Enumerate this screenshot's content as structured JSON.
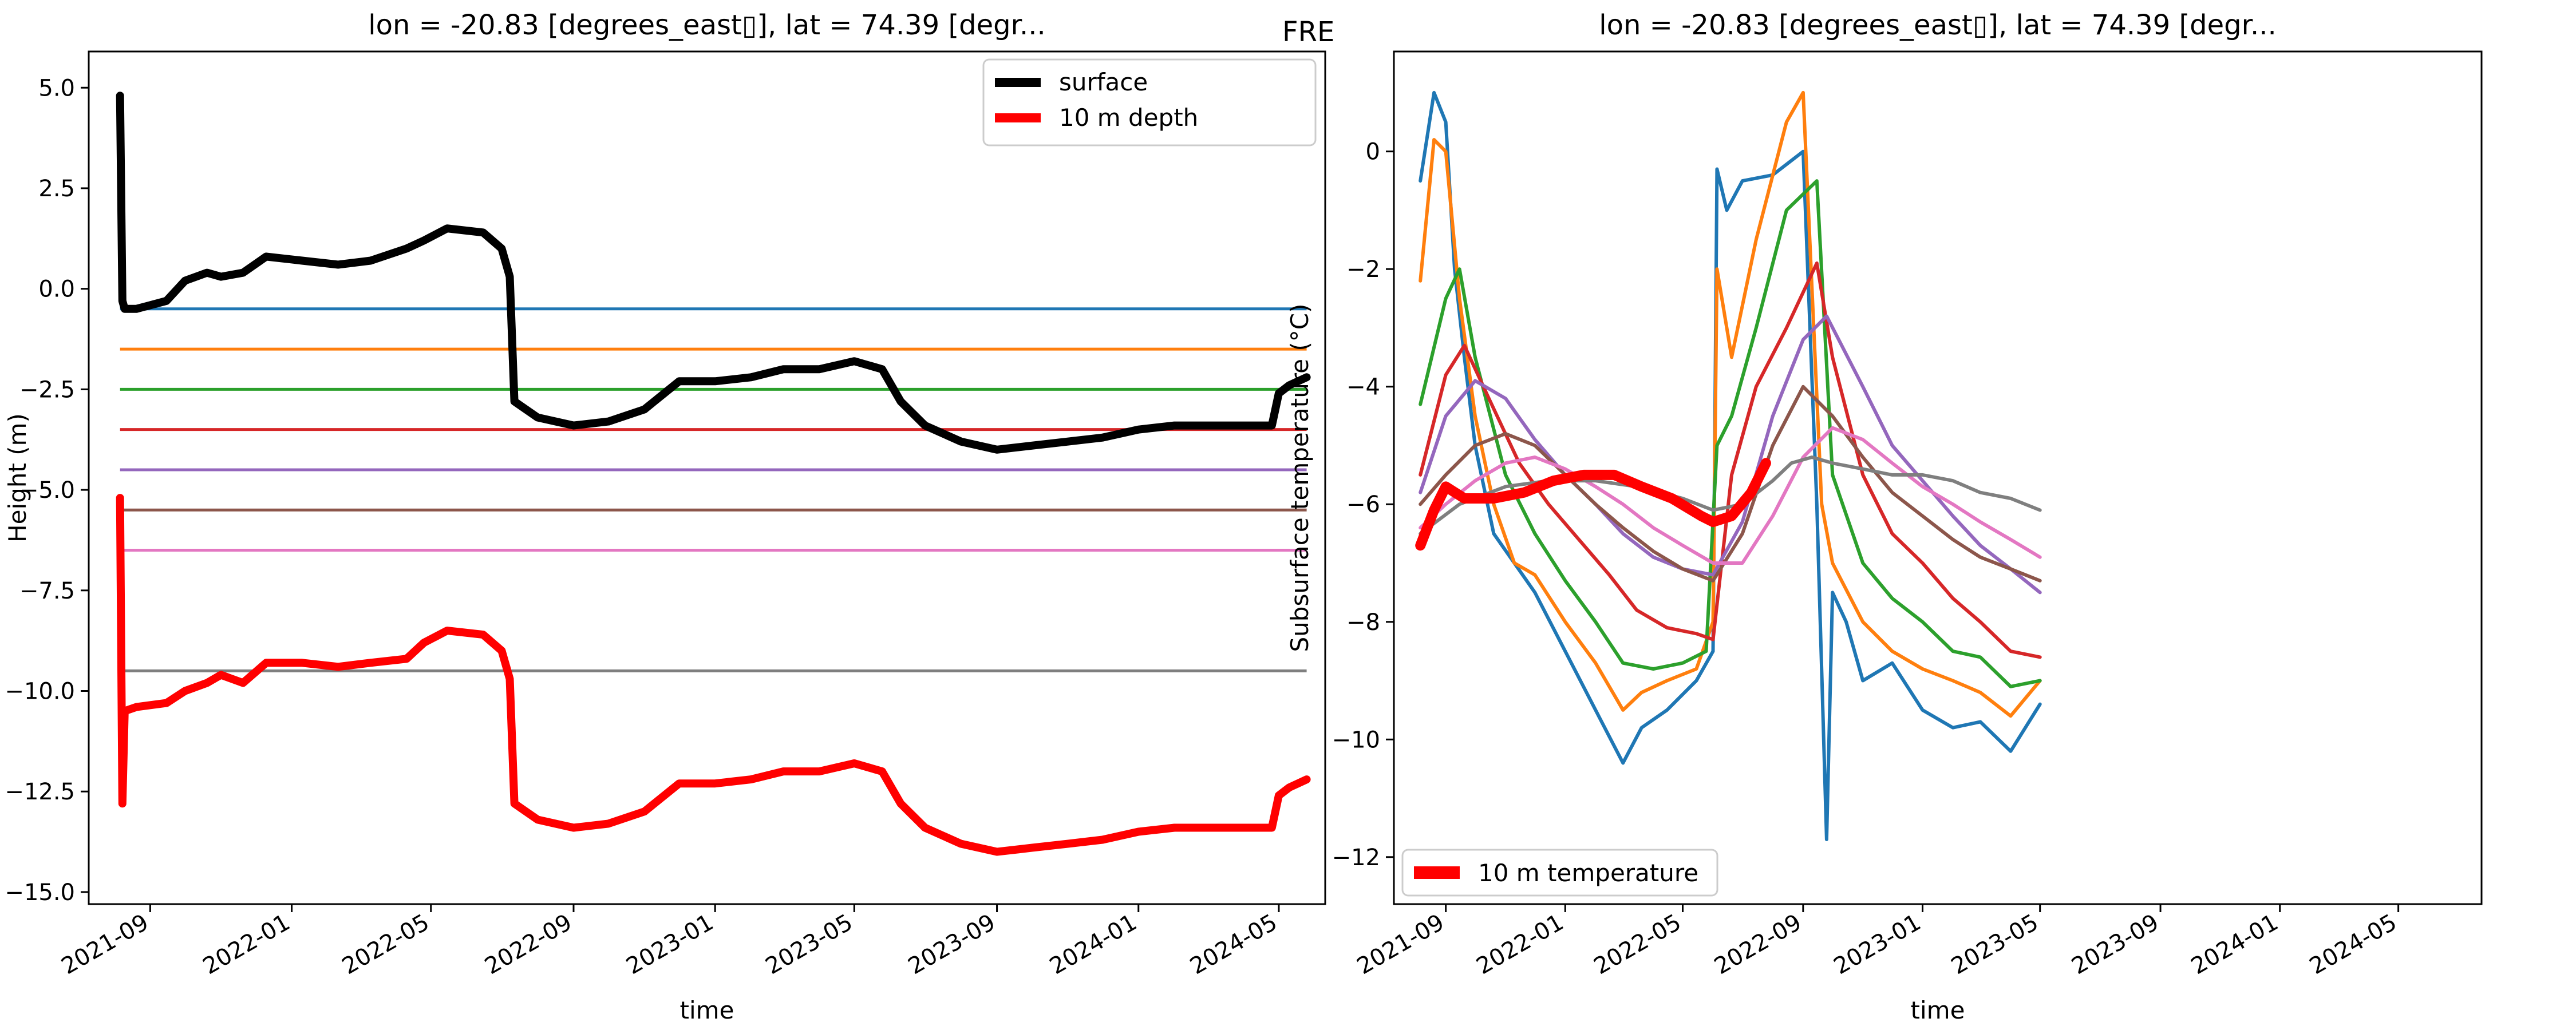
{
  "figure_label": "FRE",
  "colors": {
    "C0": "#1f77b4",
    "C1": "#ff7f0e",
    "C2": "#2ca02c",
    "C3": "#d62728",
    "C4": "#9467bd",
    "C5": "#8c564b",
    "C6": "#e377c2",
    "C7": "#7f7f7f",
    "surface": "#000000",
    "depth10": "#ff0000"
  },
  "chart_data": [
    {
      "type": "line",
      "title": "lon = -20.83 [degrees_east▯], lat = 74.39 [degr...",
      "xlabel": "time",
      "ylabel": "Height (m)",
      "xlim": [
        "2021-07-10",
        "2024-06-10"
      ],
      "ylim": [
        -15.3,
        5.9
      ],
      "xticks": [
        "2021-09",
        "2022-01",
        "2022-05",
        "2022-09",
        "2023-01",
        "2023-05",
        "2023-09",
        "2024-01",
        "2024-05"
      ],
      "yticks": [
        5.0,
        2.5,
        0.0,
        -2.5,
        -5.0,
        -7.5,
        -10.0,
        -12.5,
        -15.0
      ],
      "ytick_labels": [
        "5.0",
        "2.5",
        "0.0",
        "−2.5",
        "−5.0",
        "−7.5",
        "−10.0",
        "−12.5",
        "−15.0"
      ],
      "legend": {
        "position": "upper-right",
        "entries": [
          "surface",
          "10 m depth"
        ]
      },
      "series": [
        {
          "name": "surface",
          "color": "surface",
          "x": [
            "2021-08-06",
            "2021-08-08",
            "2021-08-10",
            "2021-08-20",
            "2021-09-15",
            "2021-10-01",
            "2021-10-20",
            "2021-11-01",
            "2021-11-20",
            "2021-12-10",
            "2022-01-10",
            "2022-02-10",
            "2022-03-10",
            "2022-04-10",
            "2022-04-25",
            "2022-05-15",
            "2022-06-15",
            "2022-07-01",
            "2022-07-08",
            "2022-07-12",
            "2022-08-01",
            "2022-09-01",
            "2022-10-01",
            "2022-11-01",
            "2022-12-01",
            "2023-01-01",
            "2023-02-01",
            "2023-03-01",
            "2023-04-01",
            "2023-05-01",
            "2023-05-25",
            "2023-06-10",
            "2023-07-01",
            "2023-08-01",
            "2023-09-01",
            "2023-10-01",
            "2023-11-01",
            "2023-12-01",
            "2024-01-01",
            "2024-02-01",
            "2024-03-01",
            "2024-04-01",
            "2024-04-25",
            "2024-05-01",
            "2024-05-10",
            "2024-05-25"
          ],
          "y": [
            4.8,
            -0.3,
            -0.5,
            -0.5,
            -0.3,
            0.2,
            0.4,
            0.3,
            0.4,
            0.8,
            0.7,
            0.6,
            0.7,
            1.0,
            1.2,
            1.5,
            1.4,
            1.0,
            0.3,
            -2.8,
            -3.2,
            -3.4,
            -3.3,
            -3.0,
            -2.3,
            -2.3,
            -2.2,
            -2.0,
            -2.0,
            -1.8,
            -2.0,
            -2.8,
            -3.4,
            -3.8,
            -4.0,
            -3.9,
            -3.8,
            -3.7,
            -3.5,
            -3.4,
            -3.4,
            -3.4,
            -3.4,
            -2.6,
            -2.4,
            -2.2
          ]
        },
        {
          "name": "10 m depth",
          "color": "depth10",
          "x": [
            "2021-08-06",
            "2021-08-08",
            "2021-08-10",
            "2021-08-20",
            "2021-09-15",
            "2021-10-01",
            "2021-10-20",
            "2021-11-01",
            "2021-11-20",
            "2021-12-10",
            "2022-01-10",
            "2022-02-10",
            "2022-03-10",
            "2022-04-10",
            "2022-04-25",
            "2022-05-15",
            "2022-06-15",
            "2022-07-01",
            "2022-07-08",
            "2022-07-12",
            "2022-08-01",
            "2022-09-01",
            "2022-10-01",
            "2022-11-01",
            "2022-12-01",
            "2023-01-01",
            "2023-02-01",
            "2023-03-01",
            "2023-04-01",
            "2023-05-01",
            "2023-05-25",
            "2023-06-10",
            "2023-07-01",
            "2023-08-01",
            "2023-09-01",
            "2023-10-01",
            "2023-11-01",
            "2023-12-01",
            "2024-01-01",
            "2024-02-01",
            "2024-03-01",
            "2024-04-01",
            "2024-04-25",
            "2024-05-01",
            "2024-05-10",
            "2024-05-25"
          ],
          "y": [
            -5.2,
            -12.8,
            -10.5,
            -10.4,
            -10.3,
            -10.0,
            -9.8,
            -9.6,
            -9.8,
            -9.3,
            -9.3,
            -9.4,
            -9.3,
            -9.2,
            -8.8,
            -8.5,
            -8.6,
            -9.0,
            -9.7,
            -12.8,
            -13.2,
            -13.4,
            -13.3,
            -13.0,
            -12.3,
            -12.3,
            -12.2,
            -12.0,
            -12.0,
            -11.8,
            -12.0,
            -12.8,
            -13.4,
            -13.8,
            -14.0,
            -13.9,
            -13.8,
            -13.7,
            -13.5,
            -13.4,
            -13.4,
            -13.4,
            -13.4,
            -12.6,
            -12.4,
            -12.2
          ]
        }
      ],
      "horizontal_lines": [
        {
          "y": -0.5,
          "color": "C0"
        },
        {
          "y": -1.5,
          "color": "C1"
        },
        {
          "y": -2.5,
          "color": "C2"
        },
        {
          "y": -3.5,
          "color": "C3"
        },
        {
          "y": -4.5,
          "color": "C4"
        },
        {
          "y": -5.5,
          "color": "C5"
        },
        {
          "y": -6.5,
          "color": "C6"
        },
        {
          "y": -9.5,
          "color": "C7"
        }
      ],
      "x_range": [
        "2021-08-06",
        "2024-05-25"
      ]
    },
    {
      "type": "line",
      "title": "lon = -20.83 [degrees_east▯], lat = 74.39 [degr...",
      "xlabel": "time",
      "ylabel": "Subsurface temperature (°C)",
      "xlim": [
        "2021-07-10",
        "2024-07-25"
      ],
      "ylim": [
        -12.8,
        1.7
      ],
      "xticks": [
        "2021-09",
        "2022-01",
        "2022-05",
        "2022-09",
        "2023-01",
        "2023-05",
        "2023-09",
        "2024-01",
        "2024-05"
      ],
      "yticks": [
        0,
        -2,
        -4,
        -6,
        -8,
        -10,
        -12
      ],
      "ytick_labels": [
        "0",
        "−2",
        "−4",
        "−6",
        "−8",
        "−10",
        "−12"
      ],
      "legend": {
        "position": "lower-left",
        "entries": [
          "10 m temperature"
        ]
      },
      "series": [
        {
          "color": "C0",
          "x": [
            "2021-08-06",
            "2021-08-20",
            "2021-09-01",
            "2021-09-10",
            "2021-09-20",
            "2021-10-01",
            "2021-10-20",
            "2021-11-10",
            "2021-12-01",
            "2022-01-01",
            "2022-02-01",
            "2022-03-01",
            "2022-03-20",
            "2022-04-15",
            "2022-05-15",
            "2022-06-01",
            "2022-06-05",
            "2022-06-15",
            "2022-07-01",
            "2022-08-01",
            "2022-09-01",
            "2022-09-15",
            "2022-09-25",
            "2022-10-01",
            "2022-10-15",
            "2022-11-01",
            "2022-12-01",
            "2023-01-01",
            "2023-02-01",
            "2023-03-01",
            "2023-04-01",
            "2023-05-01"
          ],
          "y": [
            -0.5,
            1.0,
            0.5,
            -2.0,
            -3.5,
            -5.0,
            -6.5,
            -7.0,
            -7.5,
            -8.5,
            -9.5,
            -10.4,
            -9.8,
            -9.5,
            -9.0,
            -8.5,
            -0.3,
            -1.0,
            -0.5,
            -0.4,
            0.0,
            -6.0,
            -11.7,
            -7.5,
            -8.0,
            -9.0,
            -8.7,
            -9.5,
            -9.8,
            -9.7,
            -10.2,
            -9.4
          ]
        },
        {
          "color": "C1",
          "x": [
            "2021-08-06",
            "2021-08-20",
            "2021-09-01",
            "2021-09-15",
            "2021-10-01",
            "2021-10-20",
            "2021-11-10",
            "2021-12-01",
            "2022-01-01",
            "2022-02-01",
            "2022-03-01",
            "2022-03-20",
            "2022-04-15",
            "2022-05-15",
            "2022-06-01",
            "2022-06-05",
            "2022-06-20",
            "2022-07-15",
            "2022-08-15",
            "2022-09-01",
            "2022-09-20",
            "2022-10-01",
            "2022-11-01",
            "2022-12-01",
            "2023-01-01",
            "2023-02-01",
            "2023-03-01",
            "2023-04-01",
            "2023-05-01"
          ],
          "y": [
            -2.2,
            0.2,
            0.0,
            -2.5,
            -4.5,
            -6.0,
            -7.0,
            -7.2,
            -8.0,
            -8.7,
            -9.5,
            -9.2,
            -9.0,
            -8.8,
            -8.0,
            -2.0,
            -3.5,
            -1.5,
            0.5,
            1.0,
            -6.0,
            -7.0,
            -8.0,
            -8.5,
            -8.8,
            -9.0,
            -9.2,
            -9.6,
            -9.0
          ]
        },
        {
          "color": "C2",
          "x": [
            "2021-08-06",
            "2021-09-01",
            "2021-09-15",
            "2021-10-01",
            "2021-11-01",
            "2021-12-01",
            "2022-01-01",
            "2022-02-01",
            "2022-03-01",
            "2022-04-01",
            "2022-05-01",
            "2022-05-25",
            "2022-06-05",
            "2022-06-20",
            "2022-07-15",
            "2022-08-15",
            "2022-09-15",
            "2022-10-01",
            "2022-11-01",
            "2022-12-01",
            "2023-01-01",
            "2023-02-01",
            "2023-03-01",
            "2023-04-01",
            "2023-05-01"
          ],
          "y": [
            -4.3,
            -2.5,
            -2.0,
            -3.5,
            -5.5,
            -6.5,
            -7.3,
            -8.0,
            -8.7,
            -8.8,
            -8.7,
            -8.5,
            -5.0,
            -4.5,
            -3.0,
            -1.0,
            -0.5,
            -5.5,
            -7.0,
            -7.6,
            -8.0,
            -8.5,
            -8.6,
            -9.1,
            -9.0
          ]
        },
        {
          "color": "C3",
          "x": [
            "2021-08-06",
            "2021-09-01",
            "2021-09-20",
            "2021-10-15",
            "2021-11-15",
            "2021-12-15",
            "2022-01-15",
            "2022-02-15",
            "2022-03-15",
            "2022-04-15",
            "2022-05-15",
            "2022-06-01",
            "2022-06-20",
            "2022-07-15",
            "2022-08-15",
            "2022-09-15",
            "2022-10-01",
            "2022-11-01",
            "2022-12-01",
            "2023-01-01",
            "2023-02-01",
            "2023-03-01",
            "2023-04-01",
            "2023-05-01"
          ],
          "y": [
            -5.5,
            -3.8,
            -3.3,
            -4.2,
            -5.3,
            -6.0,
            -6.6,
            -7.2,
            -7.8,
            -8.1,
            -8.2,
            -8.3,
            -5.5,
            -4.0,
            -3.0,
            -1.9,
            -3.5,
            -5.5,
            -6.5,
            -7.0,
            -7.6,
            -8.0,
            -8.5,
            -8.6
          ]
        },
        {
          "color": "C4",
          "x": [
            "2021-08-06",
            "2021-09-01",
            "2021-10-01",
            "2021-11-01",
            "2021-12-01",
            "2022-01-01",
            "2022-02-01",
            "2022-03-01",
            "2022-04-01",
            "2022-05-01",
            "2022-06-01",
            "2022-07-01",
            "2022-08-01",
            "2022-09-01",
            "2022-09-25",
            "2022-11-01",
            "2022-12-01",
            "2023-01-01",
            "2023-02-01",
            "2023-03-01",
            "2023-04-01",
            "2023-05-01"
          ],
          "y": [
            -5.8,
            -4.5,
            -3.9,
            -4.2,
            -4.9,
            -5.5,
            -6.0,
            -6.5,
            -6.9,
            -7.1,
            -7.2,
            -6.3,
            -4.5,
            -3.2,
            -2.8,
            -4.0,
            -5.0,
            -5.6,
            -6.2,
            -6.7,
            -7.1,
            -7.5
          ]
        },
        {
          "color": "C5",
          "x": [
            "2021-08-06",
            "2021-09-01",
            "2021-10-01",
            "2021-11-01",
            "2021-12-01",
            "2022-01-01",
            "2022-02-01",
            "2022-03-01",
            "2022-04-01",
            "2022-05-01",
            "2022-06-01",
            "2022-07-01",
            "2022-08-01",
            "2022-09-01",
            "2022-10-01",
            "2022-11-01",
            "2022-12-01",
            "2023-01-01",
            "2023-02-01",
            "2023-03-01",
            "2023-04-01",
            "2023-05-01"
          ],
          "y": [
            -6.0,
            -5.5,
            -5.0,
            -4.8,
            -5.0,
            -5.5,
            -6.0,
            -6.4,
            -6.8,
            -7.1,
            -7.3,
            -6.5,
            -5.0,
            -4.0,
            -4.5,
            -5.2,
            -5.8,
            -6.2,
            -6.6,
            -6.9,
            -7.1,
            -7.3
          ]
        },
        {
          "color": "C6",
          "x": [
            "2021-08-06",
            "2021-09-01",
            "2021-10-01",
            "2021-11-01",
            "2021-12-01",
            "2022-01-01",
            "2022-02-01",
            "2022-03-01",
            "2022-04-01",
            "2022-05-01",
            "2022-06-01",
            "2022-07-01",
            "2022-08-01",
            "2022-09-01",
            "2022-10-01",
            "2022-11-01",
            "2022-12-01",
            "2023-01-01",
            "2023-02-01",
            "2023-03-01",
            "2023-04-01",
            "2023-05-01"
          ],
          "y": [
            -6.4,
            -6.0,
            -5.6,
            -5.3,
            -5.2,
            -5.4,
            -5.7,
            -6.0,
            -6.4,
            -6.7,
            -7.0,
            -7.0,
            -6.2,
            -5.2,
            -4.7,
            -4.9,
            -5.3,
            -5.7,
            -6.0,
            -6.3,
            -6.6,
            -6.9
          ]
        },
        {
          "color": "C7",
          "x": [
            "2021-08-06",
            "2021-09-15",
            "2021-11-01",
            "2021-12-15",
            "2022-02-01",
            "2022-03-15",
            "2022-05-01",
            "2022-06-01",
            "2022-07-01",
            "2022-08-01",
            "2022-08-20",
            "2022-09-10",
            "2022-10-01",
            "2022-11-01",
            "2022-12-01",
            "2023-01-01",
            "2023-02-01",
            "2023-03-01",
            "2023-04-01",
            "2023-05-01"
          ],
          "y": [
            -6.5,
            -6.0,
            -5.7,
            -5.6,
            -5.6,
            -5.7,
            -5.9,
            -6.1,
            -6.0,
            -5.6,
            -5.3,
            -5.2,
            -5.3,
            -5.4,
            -5.5,
            -5.5,
            -5.6,
            -5.8,
            -5.9,
            -6.1
          ]
        },
        {
          "name": "10 m temperature",
          "color": "depth10",
          "thick": true,
          "x": [
            "2021-08-06",
            "2021-08-20",
            "2021-09-01",
            "2021-09-20",
            "2021-10-20",
            "2021-11-20",
            "2021-12-20",
            "2022-01-20",
            "2022-02-20",
            "2022-03-20",
            "2022-04-20",
            "2022-05-20",
            "2022-06-01",
            "2022-06-20",
            "2022-07-10",
            "2022-07-25"
          ],
          "y": [
            -6.7,
            -6.1,
            -5.7,
            -5.9,
            -5.9,
            -5.8,
            -5.6,
            -5.5,
            -5.5,
            -5.7,
            -5.9,
            -6.2,
            -6.3,
            -6.2,
            -5.8,
            -5.3
          ]
        }
      ]
    }
  ]
}
